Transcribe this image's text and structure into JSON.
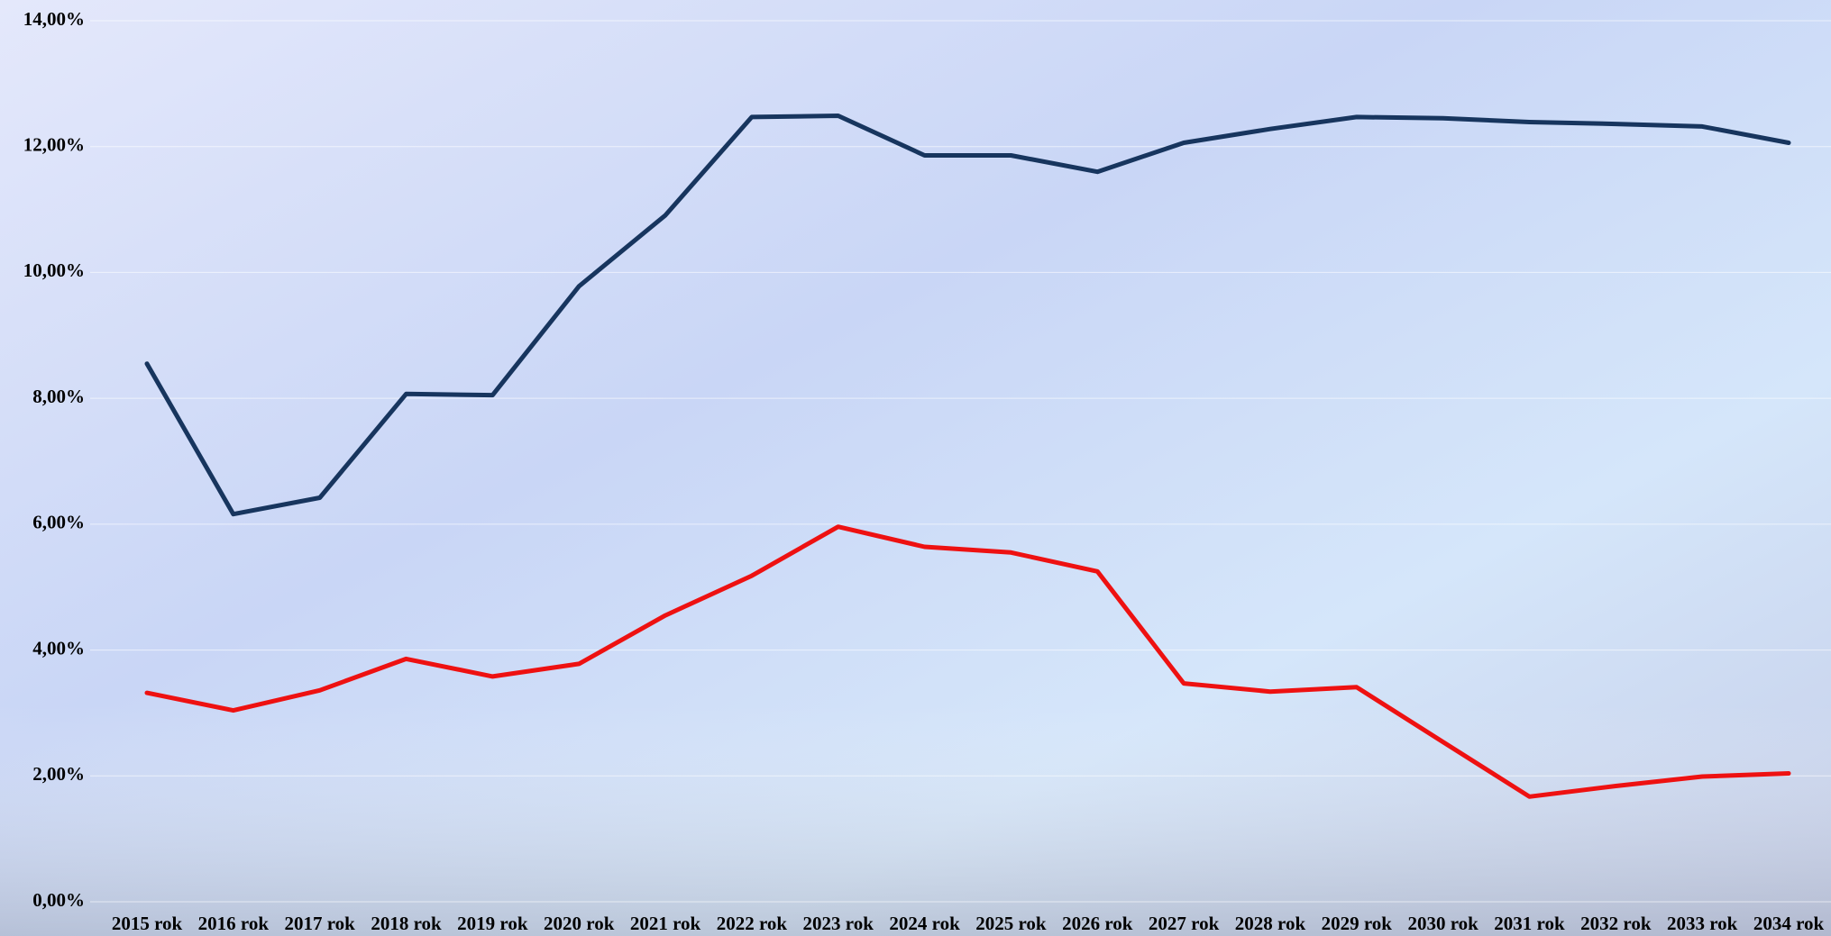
{
  "chart_data": {
    "type": "line",
    "categories": [
      "2015 rok",
      "2016 rok",
      "2017 rok",
      "2018 rok",
      "2019 rok",
      "2020 rok",
      "2021 rok",
      "2022 rok",
      "2023 rok",
      "2024 rok",
      "2025 rok",
      "2026 rok",
      "2027 rok",
      "2028 rok",
      "2029 rok",
      "2030 rok",
      "2031 rok",
      "2032 rok",
      "2033 rok",
      "2034 rok"
    ],
    "series": [
      {
        "color": "#17355e",
        "values": [
          8.55,
          6.16,
          6.42,
          8.07,
          8.05,
          9.78,
          10.91,
          12.47,
          12.49,
          11.86,
          11.86,
          11.6,
          12.06,
          12.28,
          12.47,
          12.45,
          12.39,
          12.36,
          12.32,
          12.06
        ]
      },
      {
        "color": "#ee1111",
        "values": [
          3.32,
          3.04,
          3.36,
          3.86,
          3.58,
          3.78,
          4.55,
          5.18,
          5.96,
          5.64,
          5.55,
          5.25,
          3.47,
          3.34,
          3.41,
          2.54,
          1.67,
          1.84,
          1.99,
          2.04
        ]
      }
    ],
    "ylim": [
      0,
      14
    ],
    "yticks": [
      {
        "value": 0,
        "label": "0,00%"
      },
      {
        "value": 2,
        "label": "2,00%"
      },
      {
        "value": 4,
        "label": "4,00%"
      },
      {
        "value": 6,
        "label": "6,00%"
      },
      {
        "value": 8,
        "label": "8,00%"
      },
      {
        "value": 10,
        "label": "10,00%"
      },
      {
        "value": 12,
        "label": "12,00%"
      },
      {
        "value": 14,
        "label": "14,00%"
      }
    ],
    "grid": true
  }
}
